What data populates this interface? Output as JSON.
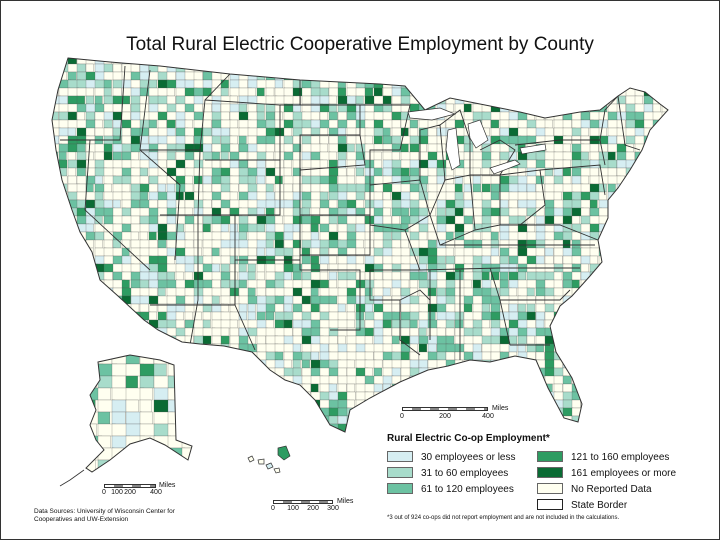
{
  "title": "Total Rural Electric Cooperative Employment by County",
  "colors": {
    "none": "#fffff0",
    "c30": "#d6eef2",
    "c60": "#a8dccb",
    "c120": "#6cc2a2",
    "c160": "#2e9c62",
    "c161": "#0a6b34",
    "border": "#333333"
  },
  "legend": {
    "title": "Rural Electric Co-op Employment*",
    "items": [
      {
        "label": "30 employees or less",
        "color": "#d6eef2"
      },
      {
        "label": "31 to 60 employees",
        "color": "#a8dccb"
      },
      {
        "label": "61 to 120 employees",
        "color": "#6cc2a2"
      },
      {
        "label": "121 to 160 employees",
        "color": "#2e9c62"
      },
      {
        "label": "161 employees or more",
        "color": "#0a6b34"
      },
      {
        "label": "No Reported Data",
        "color": "#fffff0"
      },
      {
        "label": "State Border",
        "color": "#ffffff"
      }
    ],
    "footnote": "*3 out of 924 co-ops did not report employment and are not included in the calculations."
  },
  "scales": {
    "main": {
      "unit": "Miles",
      "ticks": [
        "0",
        "200",
        "400"
      ]
    },
    "alaska": {
      "unit": "Miles",
      "ticks": [
        "0",
        "100",
        "200",
        "400"
      ]
    },
    "hawaii": {
      "unit": "Miles",
      "ticks": [
        "0",
        "100",
        "200",
        "300"
      ]
    }
  },
  "sources": "Data Sources: University of Wisconsin Center for Cooperatives and UW-Extension"
}
